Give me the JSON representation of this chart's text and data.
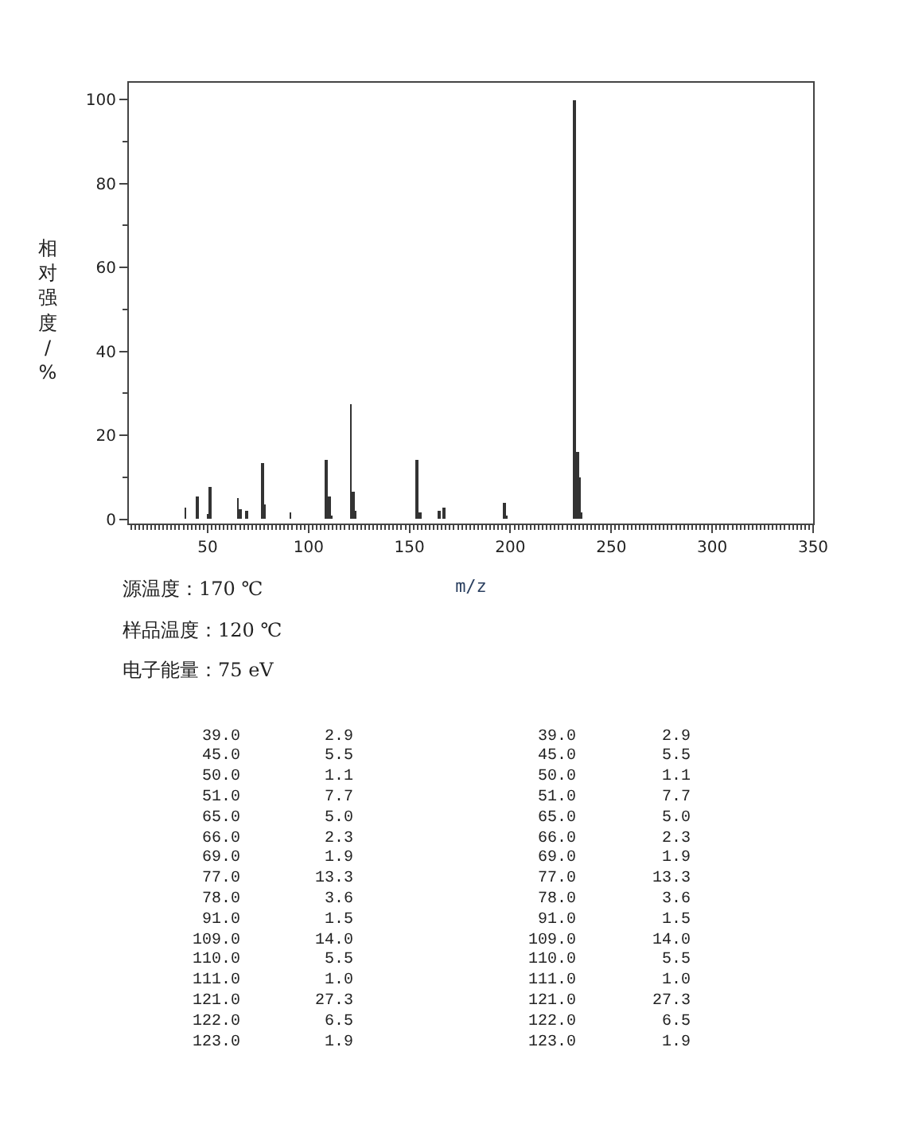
{
  "chart_data": {
    "type": "bar",
    "xlabel": "m/z",
    "ylabel": "相对强度/%",
    "x": [
      39,
      45,
      50,
      51,
      65,
      66,
      69,
      77,
      78,
      91,
      109,
      110,
      111,
      121,
      122,
      123,
      154,
      155,
      165,
      167,
      197,
      198,
      232,
      233,
      234,
      235
    ],
    "series": [
      {
        "color": "#333333",
        "values": [
          2.9,
          5.5,
          1.1,
          7.7,
          5.0,
          2.3,
          1.9,
          13.3,
          3.6,
          1.5,
          14.0,
          5.5,
          1.0,
          27.3,
          6.5,
          1.9,
          14.3,
          1.5,
          2.0,
          2.9,
          3.9,
          1.0,
          100,
          16.2,
          9.9,
          1.5
        ]
      }
    ],
    "xlim": [
      11,
      350
    ],
    "xticks": [
      50,
      100,
      150,
      200,
      250,
      300,
      350
    ],
    "ylim": [
      -1,
      104
    ],
    "yticks": [
      0,
      20,
      40,
      60,
      80,
      100
    ],
    "annotations": [
      "源温度：170 ℃",
      "样品温度：120 ℃",
      "电子能量：75 eV",
      "39.0",
      "2.9",
      "39.0",
      "2.9",
      "45.0",
      "5.5",
      "45.0",
      "5.5",
      "50.0",
      "1.1",
      "50.0",
      "1.1",
      "51.0",
      "7.7",
      "51.0",
      "7.7",
      "65.0",
      "5.0",
      "65.0",
      "5.0",
      "66.0",
      "2.3",
      "66.0",
      "2.3",
      "69.0",
      "1.9",
      "69.0",
      "1.9",
      "77.0",
      "13.3",
      "77.0",
      "13.3",
      "78.0",
      "3.6",
      "78.0",
      "3.6",
      "91.0",
      "1.5",
      "91.0",
      "1.5",
      "109.0",
      "14.0",
      "109.0",
      "14.0",
      "110.0",
      "5.5",
      "110.0",
      "5.5",
      "111.0",
      "1.0",
      "111.0",
      "1.0",
      "121.0",
      "27.3",
      "121.0",
      "27.3",
      "122.0",
      "6.5",
      "122.0",
      "6.5",
      "123.0",
      "1.9",
      "123.0",
      "1.9"
    ]
  }
}
